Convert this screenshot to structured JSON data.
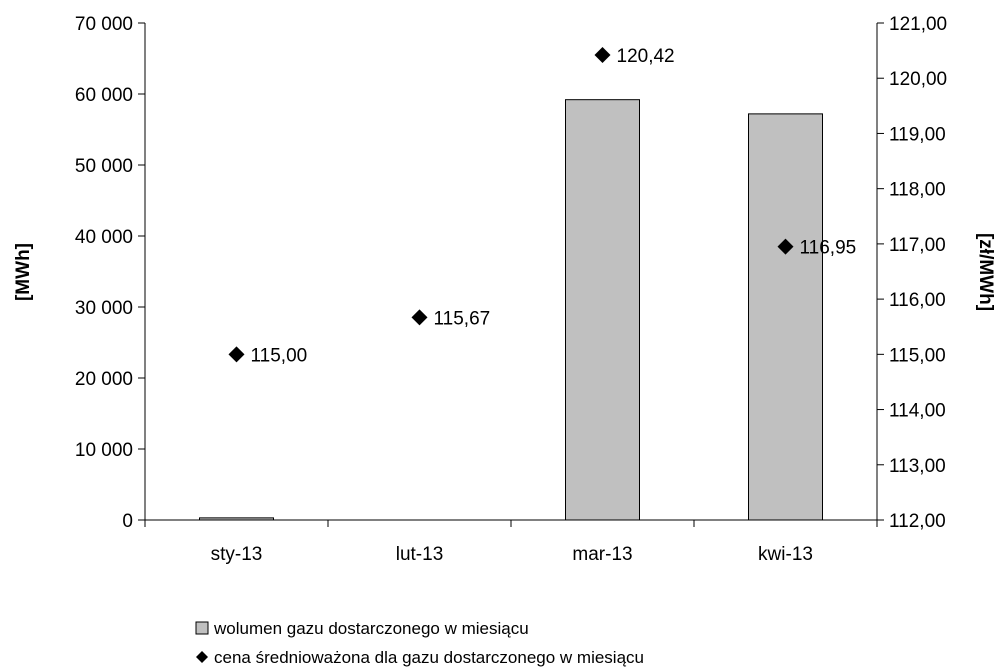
{
  "chart_data": {
    "type": "bar",
    "categories": [
      "sty-13",
      "lut-13",
      "mar-13",
      "kwi-13"
    ],
    "series": [
      {
        "name": "wolumen gazu dostarczonego w miesiącu",
        "type": "bar",
        "axis": "left",
        "values": [
          300,
          0,
          59200,
          57200
        ],
        "color": "#c0c0c0"
      },
      {
        "name": "cena średnioważona dla gazu dostarczonego w miesiącu",
        "type": "scatter",
        "axis": "right",
        "values": [
          115.0,
          115.67,
          120.42,
          116.95
        ],
        "labels": [
          "115,00",
          "115,67",
          "120,42",
          "116,95"
        ],
        "color": "#000000"
      }
    ],
    "y_left": {
      "label": "[MWh]",
      "min": 0,
      "max": 70000,
      "step": 10000,
      "tick_labels": [
        "0",
        "10 000",
        "20 000",
        "30 000",
        "40 000",
        "50 000",
        "60 000",
        "70 000"
      ]
    },
    "y_right": {
      "label": "[zł/MWh]",
      "min": 112,
      "max": 121,
      "step": 1,
      "tick_labels": [
        "112,00",
        "113,00",
        "114,00",
        "115,00",
        "116,00",
        "117,00",
        "118,00",
        "119,00",
        "120,00",
        "121,00"
      ]
    },
    "grid": false,
    "legend_position": "bottom-left"
  }
}
